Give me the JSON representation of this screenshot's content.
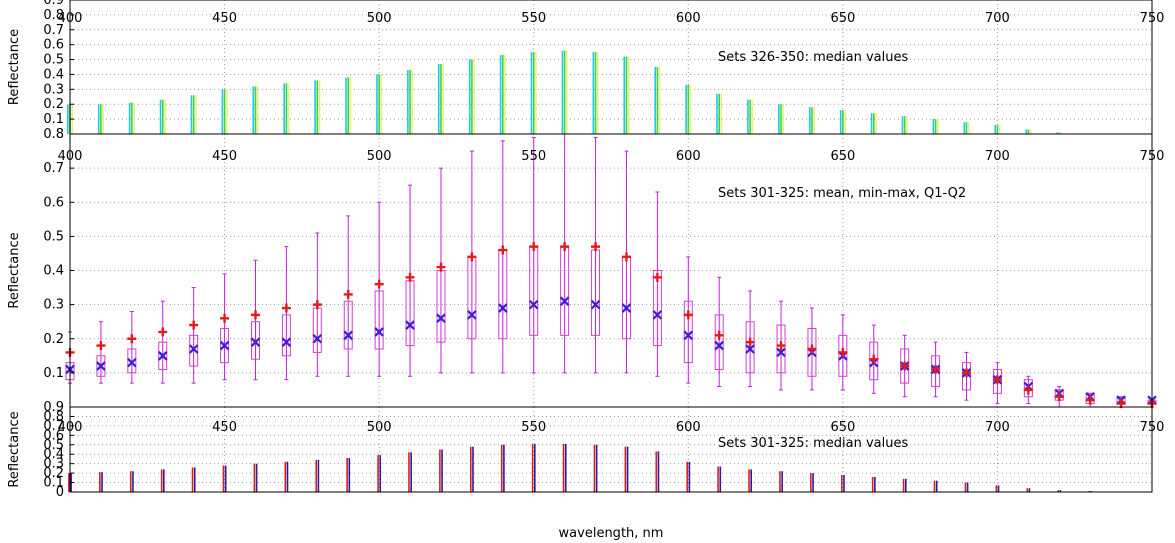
{
  "figure": {
    "xlabel": "wavelength, nm"
  },
  "colors": {
    "mean": "#e8191b",
    "median": "#3a1fd4",
    "box": "#d23fd2",
    "whisker": "#c21fe0",
    "bar_cyan": "#1ec8e6",
    "bar_green": "#3cd43c",
    "bar_yellow": "#f0ec7a",
    "bar_red": "#d82020",
    "bar_blue": "#2a1aa0"
  },
  "chart_data": [
    {
      "type": "bar",
      "annotation": "Sets 326-350: median values",
      "ylabel": "Reflectance",
      "xlim": [
        400,
        750
      ],
      "ylim": [
        0,
        0.9
      ],
      "xticks": [
        400,
        450,
        500,
        550,
        600,
        650,
        700,
        750
      ],
      "yticks": [
        0.1,
        0.2,
        0.3,
        0.4,
        0.5,
        0.6,
        0.7,
        0.8,
        0.9
      ],
      "ytick_labels": [
        "0.1",
        "0.2",
        "0.3",
        "0.4",
        "0.5",
        "0.6",
        "0.7",
        "0.8",
        "0.9"
      ],
      "x": [
        400,
        410,
        420,
        430,
        440,
        450,
        460,
        470,
        480,
        490,
        500,
        510,
        520,
        530,
        540,
        550,
        560,
        570,
        580,
        590,
        600,
        610,
        620,
        630,
        640,
        650,
        660,
        670,
        680,
        690,
        700,
        710,
        720,
        730,
        740,
        750
      ],
      "values": [
        0.2,
        0.2,
        0.21,
        0.23,
        0.26,
        0.3,
        0.32,
        0.34,
        0.36,
        0.38,
        0.4,
        0.43,
        0.47,
        0.5,
        0.53,
        0.55,
        0.56,
        0.55,
        0.52,
        0.45,
        0.33,
        0.27,
        0.23,
        0.2,
        0.18,
        0.16,
        0.14,
        0.12,
        0.1,
        0.08,
        0.06,
        0.03,
        0.01,
        0.0,
        0.0,
        0.0
      ]
    },
    {
      "type": "line",
      "annotation": "Sets 301-325: mean, min-max, Q1-Q2",
      "ylabel": "Reflectance",
      "xlim": [
        400,
        750
      ],
      "ylim": [
        0,
        0.8
      ],
      "xticks": [
        400,
        450,
        500,
        550,
        600,
        650,
        700,
        750
      ],
      "yticks": [
        0.1,
        0.2,
        0.3,
        0.4,
        0.5,
        0.6,
        0.7,
        0.8
      ],
      "ytick_labels": [
        "0.1",
        "0.2",
        "0.3",
        "0.4",
        "0.5",
        "0.6",
        "0.7",
        "0.8"
      ],
      "x": [
        400,
        410,
        420,
        430,
        440,
        450,
        460,
        470,
        480,
        490,
        500,
        510,
        520,
        530,
        540,
        550,
        560,
        570,
        580,
        590,
        600,
        610,
        620,
        630,
        640,
        650,
        660,
        670,
        680,
        690,
        700,
        710,
        720,
        730,
        740,
        750
      ],
      "series": [
        {
          "name": "mean",
          "marker": "plus",
          "values": [
            0.16,
            0.18,
            0.2,
            0.22,
            0.24,
            0.26,
            0.27,
            0.29,
            0.3,
            0.33,
            0.36,
            0.38,
            0.41,
            0.44,
            0.46,
            0.47,
            0.47,
            0.47,
            0.44,
            0.38,
            0.27,
            0.21,
            0.19,
            0.18,
            0.17,
            0.16,
            0.14,
            0.12,
            0.11,
            0.1,
            0.08,
            0.05,
            0.03,
            0.02,
            0.01,
            0.01
          ]
        },
        {
          "name": "median",
          "marker": "cross",
          "values": [
            0.11,
            0.12,
            0.13,
            0.15,
            0.17,
            0.18,
            0.19,
            0.19,
            0.2,
            0.21,
            0.22,
            0.24,
            0.26,
            0.27,
            0.29,
            0.3,
            0.31,
            0.3,
            0.29,
            0.27,
            0.21,
            0.18,
            0.17,
            0.16,
            0.16,
            0.15,
            0.13,
            0.12,
            0.11,
            0.1,
            0.08,
            0.06,
            0.04,
            0.03,
            0.02,
            0.02
          ]
        },
        {
          "name": "min",
          "marker": "tick",
          "values": [
            0.07,
            0.07,
            0.07,
            0.07,
            0.07,
            0.08,
            0.08,
            0.08,
            0.09,
            0.09,
            0.09,
            0.09,
            0.1,
            0.1,
            0.1,
            0.1,
            0.1,
            0.1,
            0.1,
            0.09,
            0.07,
            0.06,
            0.06,
            0.05,
            0.05,
            0.05,
            0.04,
            0.03,
            0.03,
            0.02,
            0.01,
            0.01,
            0.0,
            0.0,
            0.0,
            0.0
          ]
        },
        {
          "name": "max",
          "marker": "tick",
          "values": [
            0.22,
            0.25,
            0.28,
            0.31,
            0.35,
            0.39,
            0.43,
            0.47,
            0.51,
            0.56,
            0.6,
            0.65,
            0.7,
            0.75,
            0.78,
            0.79,
            0.8,
            0.79,
            0.75,
            0.63,
            0.44,
            0.38,
            0.34,
            0.31,
            0.29,
            0.27,
            0.24,
            0.21,
            0.19,
            0.16,
            0.13,
            0.09,
            0.06,
            0.04,
            0.03,
            0.02
          ]
        },
        {
          "name": "q1",
          "marker": "box",
          "values": [
            0.08,
            0.09,
            0.1,
            0.11,
            0.12,
            0.13,
            0.14,
            0.15,
            0.16,
            0.17,
            0.17,
            0.18,
            0.19,
            0.2,
            0.2,
            0.21,
            0.21,
            0.21,
            0.2,
            0.18,
            0.13,
            0.11,
            0.1,
            0.1,
            0.09,
            0.09,
            0.08,
            0.07,
            0.06,
            0.05,
            0.04,
            0.03,
            0.02,
            0.01,
            0.01,
            0.01
          ]
        },
        {
          "name": "q2",
          "marker": "box",
          "values": [
            0.13,
            0.15,
            0.17,
            0.19,
            0.21,
            0.23,
            0.25,
            0.27,
            0.29,
            0.31,
            0.34,
            0.37,
            0.4,
            0.44,
            0.46,
            0.47,
            0.47,
            0.46,
            0.44,
            0.4,
            0.31,
            0.27,
            0.25,
            0.24,
            0.23,
            0.21,
            0.19,
            0.17,
            0.15,
            0.13,
            0.11,
            0.08,
            0.05,
            0.04,
            0.03,
            0.02
          ]
        }
      ]
    },
    {
      "type": "bar",
      "annotation": "Sets 301-325: median values",
      "ylabel": "Reflectance",
      "xlim": [
        400,
        750
      ],
      "ylim": [
        0,
        0.9
      ],
      "xticks": [
        400,
        450,
        500,
        550,
        600,
        650,
        700,
        750
      ],
      "yticks": [
        0,
        0.1,
        0.2,
        0.3,
        0.4,
        0.5,
        0.6,
        0.7,
        0.8,
        0.9
      ],
      "ytick_labels": [
        "0",
        "0.1",
        "0.2",
        "0.3",
        "0.4",
        "0.5",
        "0.6",
        "0.7",
        "0.8",
        "0.9"
      ],
      "x": [
        400,
        410,
        420,
        430,
        440,
        450,
        460,
        470,
        480,
        490,
        500,
        510,
        520,
        530,
        540,
        550,
        560,
        570,
        580,
        590,
        600,
        610,
        620,
        630,
        640,
        650,
        660,
        670,
        680,
        690,
        700,
        710,
        720,
        730,
        740,
        750
      ],
      "values": [
        0.2,
        0.21,
        0.22,
        0.24,
        0.26,
        0.28,
        0.3,
        0.32,
        0.34,
        0.36,
        0.39,
        0.42,
        0.45,
        0.48,
        0.5,
        0.51,
        0.51,
        0.5,
        0.48,
        0.43,
        0.32,
        0.27,
        0.24,
        0.22,
        0.2,
        0.18,
        0.16,
        0.14,
        0.12,
        0.1,
        0.07,
        0.04,
        0.02,
        0.01,
        0.0,
        0.0
      ]
    }
  ]
}
